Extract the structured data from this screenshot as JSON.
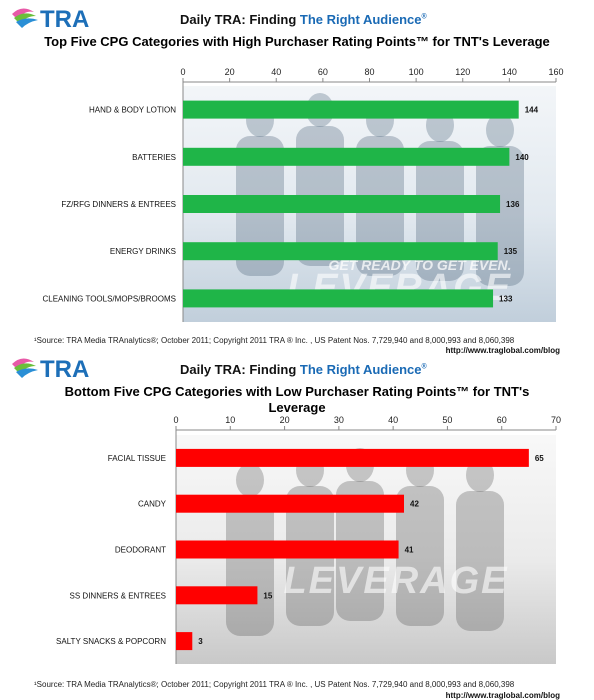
{
  "logo_text": "TRA",
  "charts": [
    {
      "header_prefix": "Daily TRA: Finding ",
      "header_highlight": "The Right Audience",
      "header_mark": "®",
      "subtitle": "Top Five CPG Categories with High Purchaser Rating Points™ for TNT's Leverage",
      "footnote": "¹Source: TRA Media TRAnalytics®; October 2011; Copyright 2011 TRA ® Inc. , US Patent Nos. 7,729,940 and 8,000,993 and 8,060,398",
      "url": "http://www.traglobal.com/blog",
      "backdrop_caption": "GET READY TO GET EVEN.",
      "backdrop_logo": "LEVERAGE"
    },
    {
      "header_prefix": "Daily TRA: Finding ",
      "header_highlight": "The Right Audience",
      "header_mark": "®",
      "subtitle": "Bottom Five CPG Categories with Low Purchaser Rating Points™ for TNT's Leverage",
      "footnote": "¹Source: TRA Media TRAnalytics®; October 2011; Copyright 2011 TRA ® Inc. , US Patent Nos. 7,729,940 and 8,000,993 and 8,060,398",
      "url": "http://www.traglobal.com/blog",
      "backdrop_caption": "",
      "backdrop_logo": "LEVERAGE"
    }
  ],
  "chart_data": [
    {
      "type": "bar",
      "orientation": "horizontal",
      "title": "Top Five CPG Categories with High Purchaser Rating Points™ for TNT's Leverage",
      "categories": [
        "HAND & BODY LOTION",
        "BATTERIES",
        "FZ/RFG DINNERS & ENTREES",
        "ENERGY DRINKS",
        "CLEANING TOOLS/MOPS/BROOMS"
      ],
      "values": [
        144,
        140,
        136,
        135,
        133
      ],
      "xlim": [
        0,
        160
      ],
      "ticks": [
        0,
        20,
        40,
        60,
        80,
        100,
        120,
        140,
        160
      ],
      "bar_color": "#1fb548",
      "axis_position": "top",
      "data_labels": true
    },
    {
      "type": "bar",
      "orientation": "horizontal",
      "title": "Bottom Five CPG Categories with Low Purchaser Rating Points™ for TNT's Leverage",
      "categories": [
        "FACIAL TISSUE",
        "CANDY",
        "DEODORANT",
        "SS DINNERS & ENTREES",
        "SALTY SNACKS & POPCORN"
      ],
      "values": [
        65,
        42,
        41,
        15,
        3
      ],
      "xlim": [
        0,
        70
      ],
      "ticks": [
        0,
        10,
        20,
        30,
        40,
        50,
        60,
        70
      ],
      "bar_color": "#ff0000",
      "axis_position": "top",
      "data_labels": true
    }
  ]
}
